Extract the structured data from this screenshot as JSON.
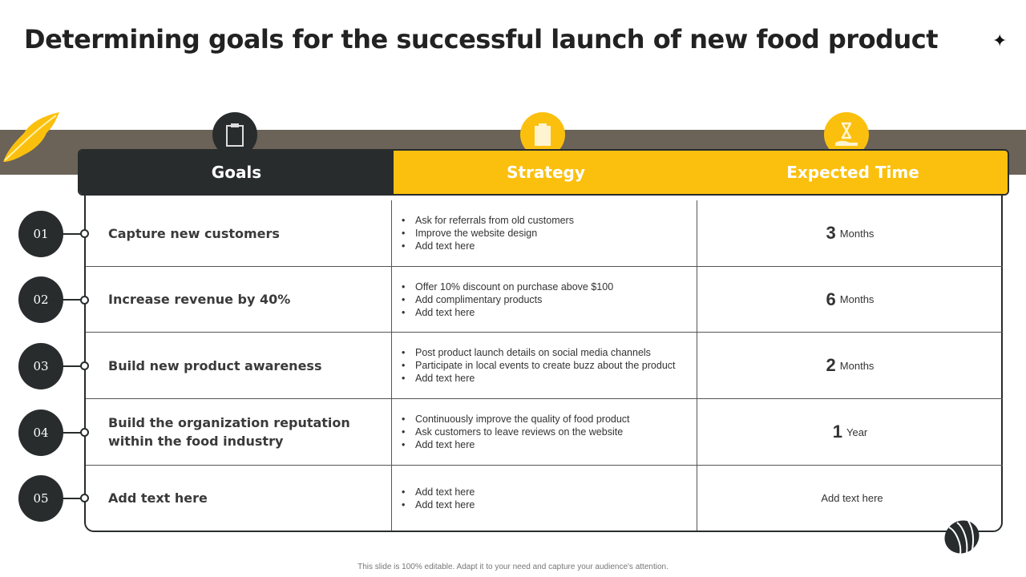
{
  "title": "Determining goals for the successful launch of new food product",
  "colors": {
    "dark": "#282c2d",
    "accent": "#fbc00e",
    "band": "#6b6258"
  },
  "icons": [
    "clipboard-icon",
    "strategy-board-icon",
    "hourglass-hand-icon",
    "leaf-icon",
    "seed-icon",
    "sparkle-icon"
  ],
  "headers": {
    "goals": "Goals",
    "strategy": "Strategy",
    "time": "Expected Time"
  },
  "rows": [
    {
      "num": "01",
      "goal": "Capture new customers",
      "strategy": [
        "Ask for referrals from old customers",
        "Improve  the website design",
        "Add text here"
      ],
      "time_value": "3",
      "time_unit": "Months"
    },
    {
      "num": "02",
      "goal": "Increase revenue by 40%",
      "strategy": [
        "Offer 10% discount on purchase above $100",
        "Add complimentary products",
        "Add text here"
      ],
      "time_value": "6",
      "time_unit": "Months"
    },
    {
      "num": "03",
      "goal": "Build new product awareness",
      "strategy": [
        "Post product launch details on social media channels",
        "Participate in local events to create buzz about the product",
        "Add text here"
      ],
      "time_value": "2",
      "time_unit": "Months"
    },
    {
      "num": "04",
      "goal": "Build the organization reputation within the food industry",
      "strategy": [
        "Continuously improve  the quality of food product",
        "Ask customers to leave  reviews  on the website",
        "Add text here"
      ],
      "time_value": "1",
      "time_unit": "Year"
    },
    {
      "num": "05",
      "goal": "Add text here",
      "strategy": [
        "Add text here",
        "Add text here"
      ],
      "time_value": "",
      "time_unit": "Add text here"
    }
  ],
  "footer": "This slide is 100% editable.  Adapt it to your need and capture your audience's attention."
}
